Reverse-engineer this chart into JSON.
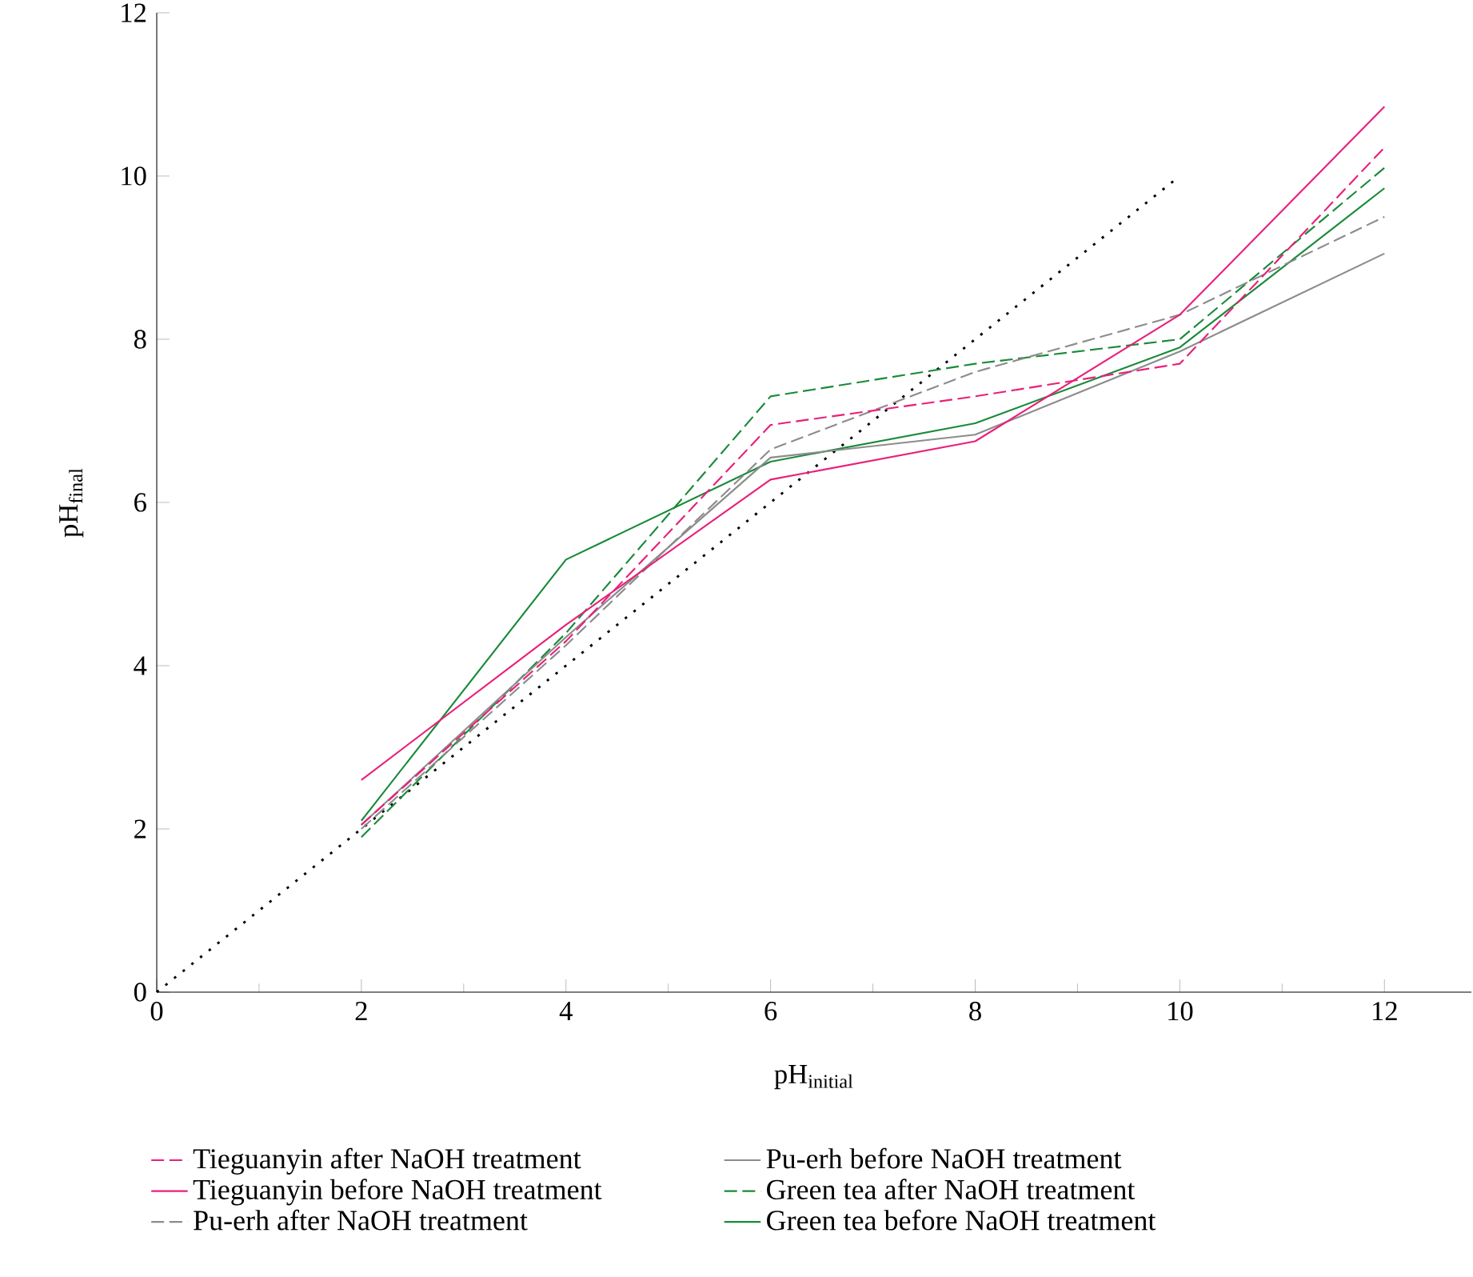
{
  "chart_data": {
    "type": "line",
    "xlabel": "pH$_{initial}$",
    "ylabel": "pH$_{final}$",
    "x": [
      2,
      4,
      6,
      8,
      10,
      12
    ],
    "series": [
      {
        "name": "Tieguanyin after NaOH treatment",
        "color": "#e8207a",
        "line_style": "dashed",
        "values": [
          2.05,
          4.3,
          6.95,
          7.3,
          7.7,
          10.35
        ]
      },
      {
        "name": "Tieguanyin before NaOH treatment",
        "color": "#e8207a",
        "line_style": "solid",
        "values": [
          2.6,
          4.5,
          6.28,
          6.75,
          8.3,
          10.85
        ]
      },
      {
        "name": "Pu-erh after NaOH treatment",
        "color": "#8c8c8c",
        "line_style": "dashed",
        "values": [
          2.0,
          4.25,
          6.65,
          7.6,
          8.3,
          9.5
        ]
      },
      {
        "name": "Pu-erh before NaOH treatment",
        "color": "#8c8c8c",
        "line_style": "solid",
        "values": [
          2.05,
          4.35,
          6.55,
          6.83,
          7.85,
          9.05
        ]
      },
      {
        "name": "Green tea after NaOH treatment",
        "color": "#1a8a3a",
        "line_style": "dashed",
        "values": [
          1.9,
          4.4,
          7.3,
          7.7,
          8.0,
          10.1
        ]
      },
      {
        "name": "Green tea before NaOH treatment",
        "color": "#1a8a3a",
        "line_style": "solid",
        "values": [
          2.1,
          5.3,
          6.5,
          6.97,
          7.9,
          9.85
        ]
      },
      {
        "color": "#000000",
        "line_style": "dotted",
        "x": [
          0,
          10
        ],
        "values": [
          0,
          10
        ]
      }
    ],
    "xlim": [
      0,
      12.85
    ],
    "ylim": [
      0,
      12
    ],
    "xticks": [
      0,
      2,
      4,
      6,
      8,
      10,
      12
    ],
    "yticks": [
      0,
      2,
      4,
      6,
      8,
      10,
      12
    ],
    "grid": false,
    "legend": "bottom",
    "marker": "none"
  }
}
